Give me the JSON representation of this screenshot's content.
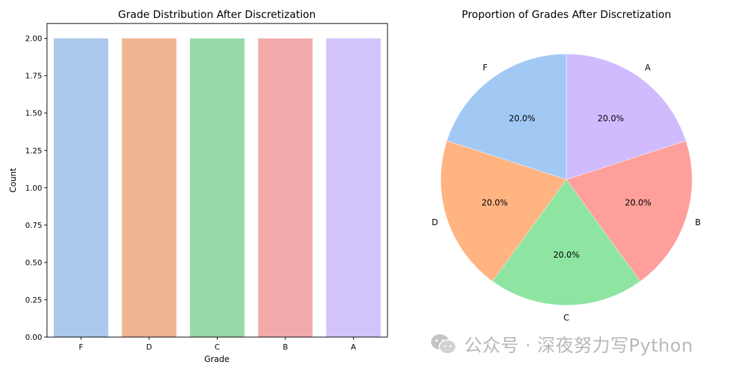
{
  "chart_data": [
    {
      "type": "bar",
      "title": "Grade Distribution After Discretization",
      "xlabel": "Grade",
      "ylabel": "Count",
      "categories": [
        "F",
        "D",
        "C",
        "B",
        "A"
      ],
      "values": [
        2,
        2,
        2,
        2,
        2
      ],
      "ylim": [
        0,
        2.1
      ],
      "yticks": [
        "0.00",
        "0.25",
        "0.50",
        "0.75",
        "1.00",
        "1.25",
        "1.50",
        "1.75",
        "2.00"
      ],
      "colors": [
        "#abc8eb",
        "#efb491",
        "#97d9a7",
        "#f1aaaa",
        "#d2c3f8"
      ],
      "grid": false
    },
    {
      "type": "pie",
      "title": "Proportion of Grades After Discretization",
      "labels": [
        "F",
        "D",
        "C",
        "B",
        "A"
      ],
      "values": [
        20,
        20,
        20,
        20,
        20
      ],
      "pct_labels": [
        "20.0%",
        "20.0%",
        "20.0%",
        "20.0%",
        "20.0%"
      ],
      "colors": [
        "#a1c9f4",
        "#ffb482",
        "#8de5a1",
        "#ff9f9b",
        "#d0bbff"
      ],
      "start_angle_deg": 90
    }
  ],
  "watermark": {
    "text": "公众号 · 深夜努力写Python",
    "icon": "wechat-icon"
  }
}
